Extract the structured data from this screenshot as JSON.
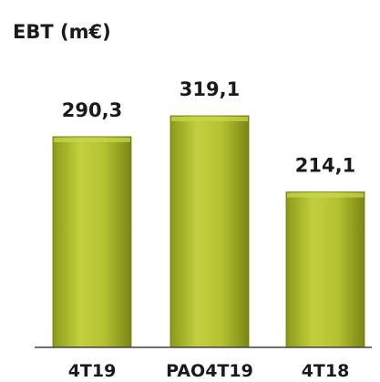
{
  "chart_data": {
    "type": "bar",
    "title": "EBT (m€)",
    "categories": [
      "4T19",
      "PAO4T19",
      "4T18"
    ],
    "values": [
      290.3,
      319.1,
      214.1
    ],
    "value_labels": [
      "290,3",
      "319,1",
      "214,1"
    ],
    "ylim": [
      0,
      319.1
    ],
    "grid": false,
    "legend": "none"
  },
  "colors": {
    "bar_top": "#c8d64a",
    "bar_mid": "#a8b82a",
    "bar_bottom": "#7f8c14",
    "bar_edge": "#6b7610",
    "axis": "#444444"
  }
}
